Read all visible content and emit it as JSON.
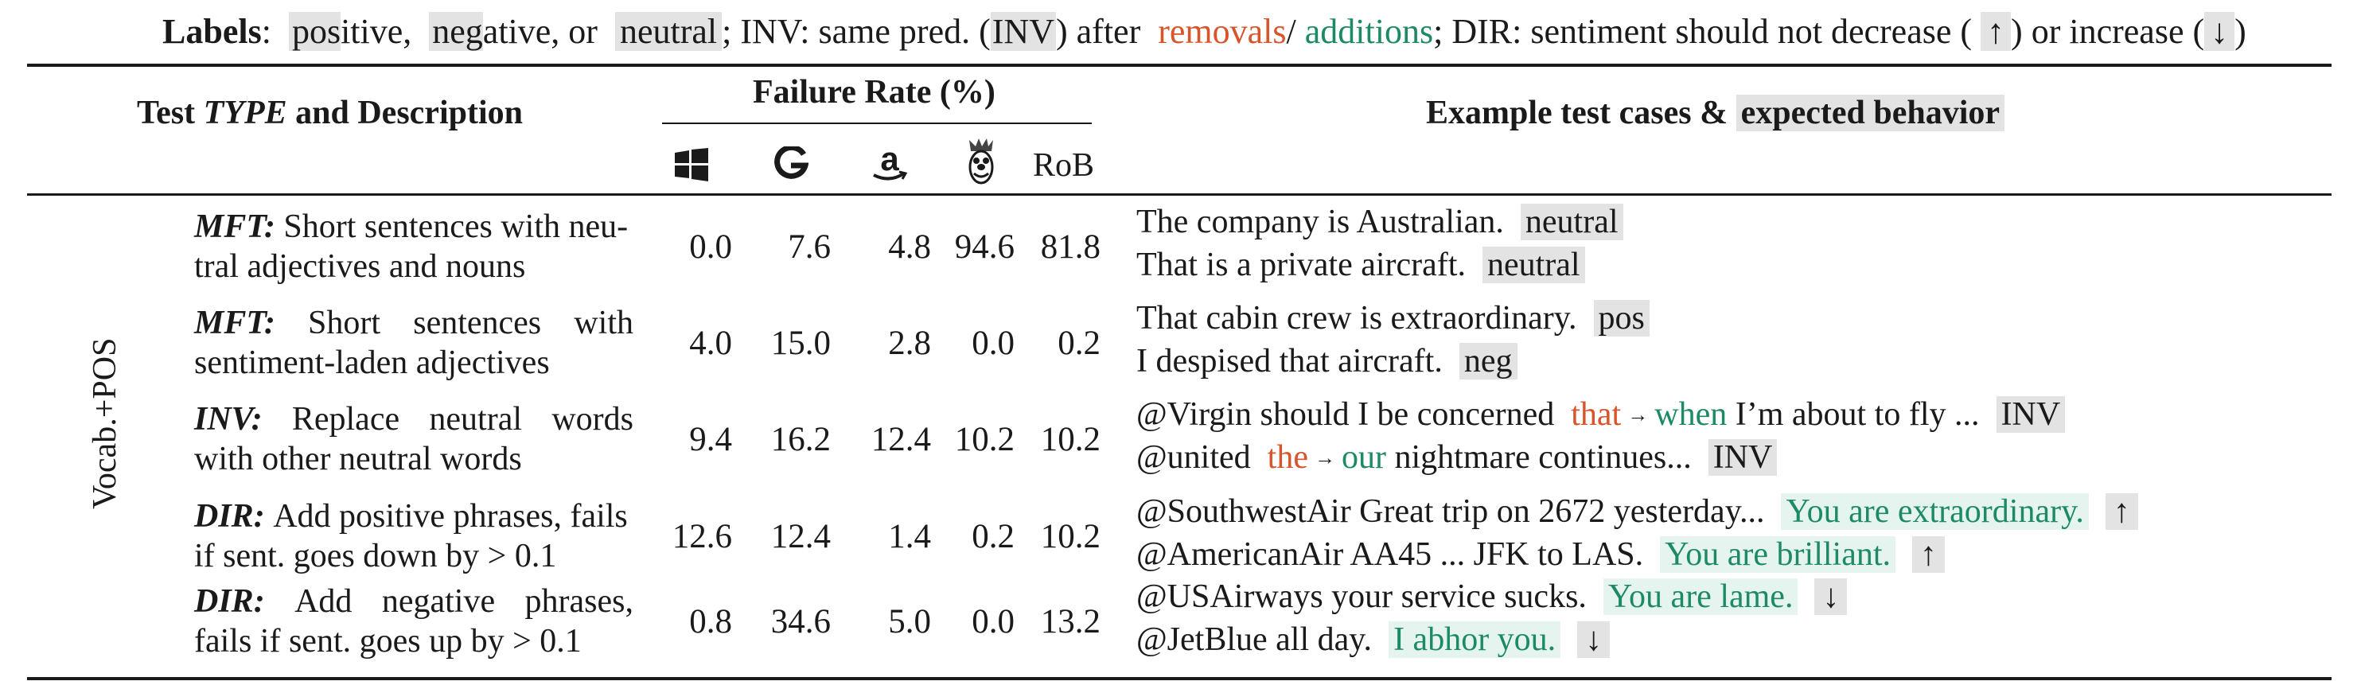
{
  "legend": {
    "labels_title": "Labels",
    "colon": ":",
    "pos_hl": "pos",
    "pos_rest": "itive,",
    "neg_hl": "neg",
    "neg_rest": "ative, or",
    "neutral": "neutral",
    "inv_text": "; INV: same pred. (",
    "inv_box": "INV",
    "after": ") after",
    "removals": "removals",
    "slash": "/",
    "additions": "additions",
    "dir_text": "; DIR: sentiment should not decrease (",
    "up": "↑",
    "mid": ") or increase (",
    "down": "↓",
    "close": ")"
  },
  "header": {
    "test_type_pre": "Test ",
    "test_type_it": "TYPE",
    "test_type_post": " and Description",
    "failure_rate": "Failure Rate (%)",
    "examples_pre": "Example test cases & ",
    "examples_hl": "expected behavior",
    "model_icons": [
      "windows-icon",
      "google-icon",
      "amazon-icon",
      "bert-icon"
    ],
    "model_last": "RoB"
  },
  "capability": "Vocab.+POS",
  "rows": [
    {
      "type": "MFT:",
      "desc_lines": [
        [
          "Short sentences with neu-"
        ],
        [
          "tral adjectives and nouns"
        ]
      ],
      "rates": [
        "0.0",
        "7.6",
        "4.8",
        "94.6",
        "81.8"
      ],
      "examples": [
        {
          "text": "The company is Australian.",
          "label": "neutral"
        },
        {
          "text": "That is a private aircraft.",
          "label": "neutral"
        }
      ]
    },
    {
      "type": "MFT:",
      "desc_lines": [
        [
          "Short",
          "sentences",
          "with"
        ],
        [
          "sentiment-laden adjectives"
        ]
      ],
      "rates": [
        "4.0",
        "15.0",
        "2.8",
        "0.0",
        "0.2"
      ],
      "examples": [
        {
          "text": "That cabin crew is extraordinary.",
          "label": "pos"
        },
        {
          "text": "I despised that aircraft.",
          "label": "neg"
        }
      ]
    },
    {
      "type": "INV:",
      "desc_lines": [
        [
          "Replace",
          "neutral",
          "words"
        ],
        [
          "with other neutral words"
        ]
      ],
      "rates": [
        "9.4",
        "16.2",
        "12.4",
        "10.2",
        "10.2"
      ],
      "examples": [
        {
          "pre": "@Virgin should I be concerned",
          "removed": "that",
          "arrow": "→",
          "added": "when",
          "post": "I’m about to fly ...",
          "label": "INV"
        },
        {
          "pre": "@united",
          "removed": "the",
          "arrow": "→",
          "added": "our",
          "post": "nightmare continues...",
          "label": "INV"
        }
      ]
    },
    {
      "type": "DIR:",
      "desc_lines": [
        [
          "Add positive phrases, fails"
        ],
        [
          "if sent. goes down by > 0.1"
        ]
      ],
      "rates": [
        "12.6",
        "12.4",
        "1.4",
        "0.2",
        "10.2"
      ],
      "examples": [
        {
          "text": "@SouthwestAir Great trip on 2672 yesterday...",
          "added": "You are extraordinary.",
          "label": "↑"
        },
        {
          "text": "@AmericanAir AA45 ... JFK to LAS.",
          "added": "You are brilliant.",
          "label": "↑"
        }
      ]
    },
    {
      "type": "DIR:",
      "desc_lines": [
        [
          "Add",
          "negative",
          "phrases,"
        ],
        [
          "fails if sent. goes up by > 0.1"
        ]
      ],
      "rates": [
        "0.8",
        "34.6",
        "5.0",
        "0.0",
        "13.2"
      ],
      "examples": [
        {
          "text": "@USAirways your service sucks.",
          "added": "You are lame.",
          "label": "↓"
        },
        {
          "text": "@JetBlue all day.",
          "added": "I abhor you.",
          "label": "↓"
        }
      ]
    }
  ]
}
